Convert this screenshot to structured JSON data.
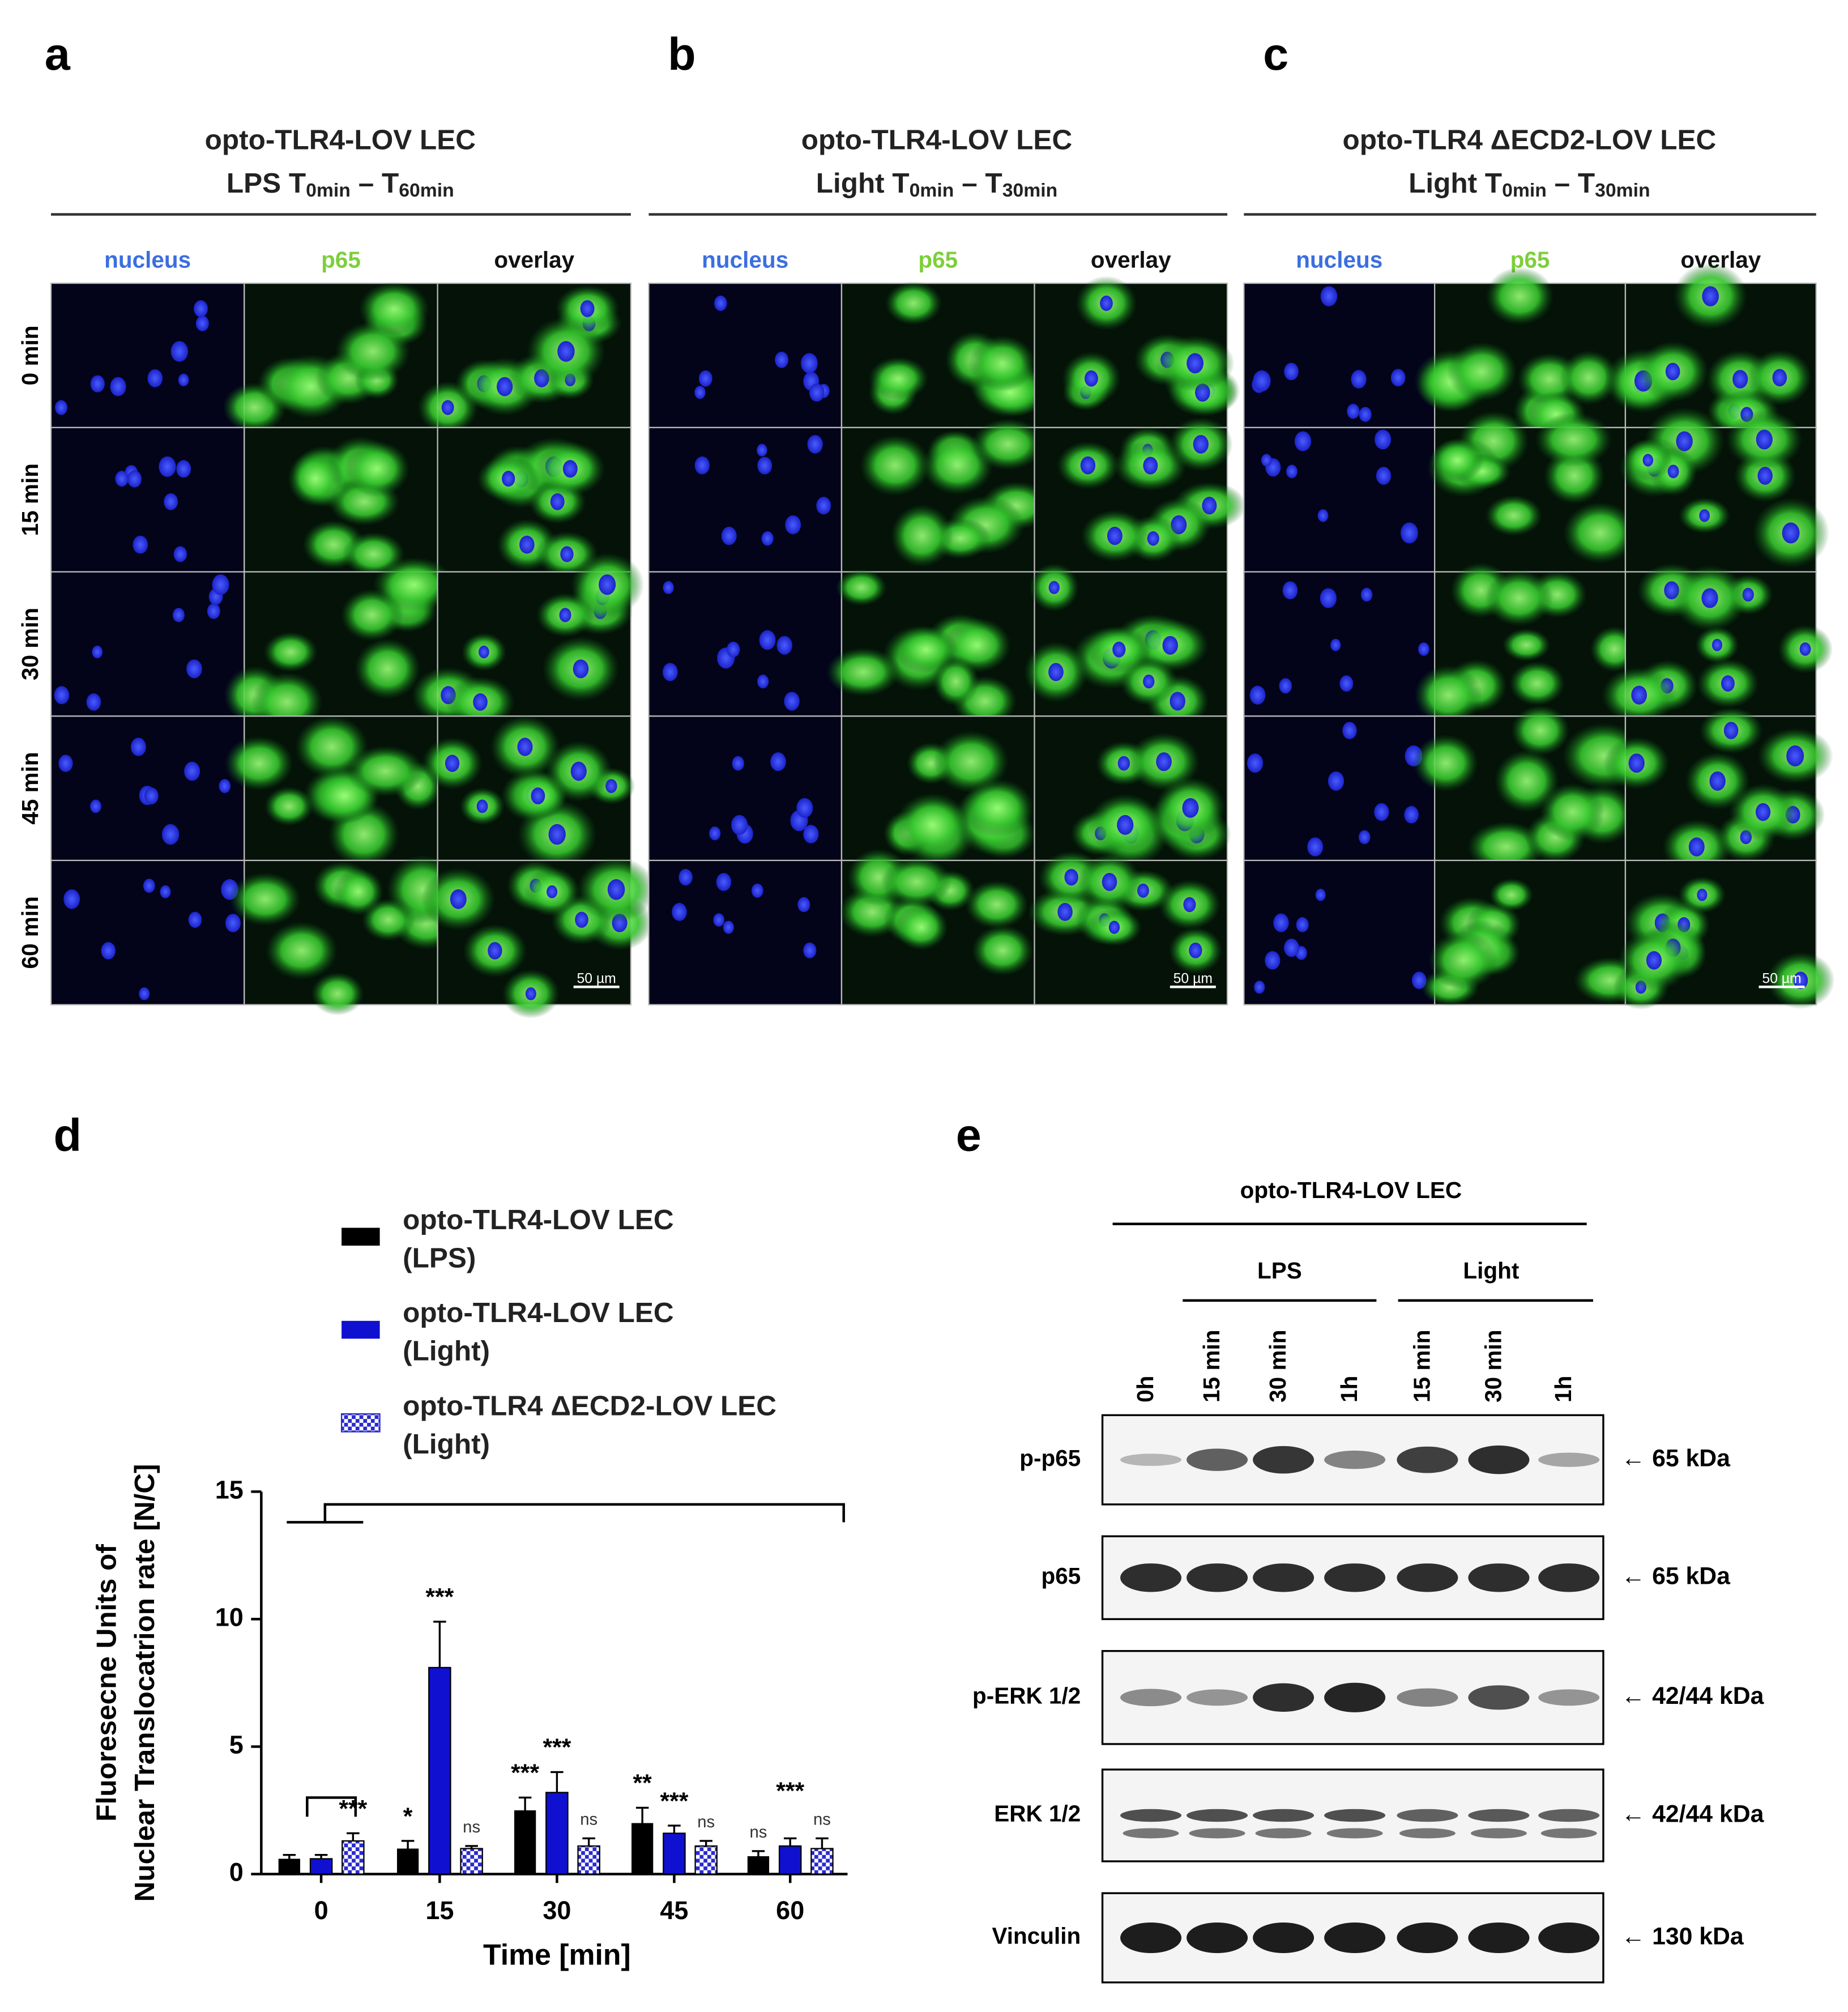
{
  "panels": [
    {
      "letter": "a",
      "title": "opto-TLR4-LOV LEC",
      "condition": {
        "prefix": "LPS T",
        "start": "0min",
        "dash": " – T",
        "end": "60min"
      },
      "channels": [
        "nucleus",
        "p65",
        "overlay"
      ],
      "scale_bar": "50 µm"
    },
    {
      "letter": "b",
      "title": "opto-TLR4-LOV LEC",
      "condition": {
        "prefix": "Light T",
        "start": "0min",
        "dash": " – T",
        "end": "30min"
      },
      "channels": [
        "nucleus",
        "p65",
        "overlay"
      ],
      "scale_bar": "50 µm"
    },
    {
      "letter": "c",
      "title": "opto-TLR4 ΔECD2-LOV LEC",
      "condition": {
        "prefix": "Light T",
        "start": "0min",
        "dash": " – T",
        "end": "30min"
      },
      "channels": [
        "nucleus",
        "p65",
        "overlay"
      ],
      "scale_bar": "50 µm"
    }
  ],
  "row_labels": [
    "0 min",
    "15 min",
    "30 min",
    "45 min",
    "60 min"
  ],
  "chart_data": {
    "type": "bar",
    "panel_label": "d",
    "x_label": "Time [min]",
    "y_label": [
      "Fluoresecne Units of",
      "Nuclear Translocatrion rate [N/C]"
    ],
    "categories": [
      "0",
      "15",
      "30",
      "45",
      "60"
    ],
    "ylim": [
      0,
      15
    ],
    "yticks": [
      0,
      5,
      10,
      15
    ],
    "series": [
      {
        "name": "opto-TLR4-LOV LEC\n(LPS)",
        "color": "#000000",
        "pattern": "solid",
        "values": [
          0.6,
          1.0,
          2.5,
          2.0,
          0.7
        ],
        "errors": [
          0.15,
          0.3,
          0.5,
          0.6,
          0.2
        ],
        "significance": [
          null,
          "*",
          "***",
          "**",
          "ns"
        ]
      },
      {
        "name": "opto-TLR4-LOV LEC\n(Light)",
        "color": "#1010d0",
        "pattern": "solid",
        "values": [
          0.6,
          8.1,
          3.2,
          1.6,
          1.1
        ],
        "errors": [
          0.15,
          1.8,
          0.8,
          0.3,
          0.3
        ],
        "significance": [
          null,
          "***",
          "***",
          "***",
          "***"
        ]
      },
      {
        "name": "opto-TLR4 ΔECD2-LOV LEC\n(Light)",
        "color": "#2a2ad0",
        "pattern": "checker",
        "values": [
          1.3,
          1.0,
          1.1,
          1.1,
          1.0
        ],
        "errors": [
          0.3,
          0.1,
          0.3,
          0.2,
          0.4
        ],
        "significance": [
          "***",
          "ns",
          "ns",
          "ns",
          "ns"
        ]
      }
    ]
  },
  "blot": {
    "panel_label": "e",
    "header": "opto-TLR4-LOV LEC",
    "groups": [
      "LPS",
      "Light"
    ],
    "lanes": [
      "0h",
      "15 min",
      "30 min",
      "1h",
      "15 min",
      "30 min",
      "1h"
    ],
    "rows": [
      {
        "label": "p-p65",
        "size": "← 65 kDa"
      },
      {
        "label": "p65",
        "size": "← 65 kDa"
      },
      {
        "label": "p-ERK 1/2",
        "size": "← 42/44 kDa"
      },
      {
        "label": "ERK 1/2",
        "size": "← 42/44 kDa"
      },
      {
        "label": "Vinculin",
        "size": "← 130 kDa"
      }
    ]
  }
}
